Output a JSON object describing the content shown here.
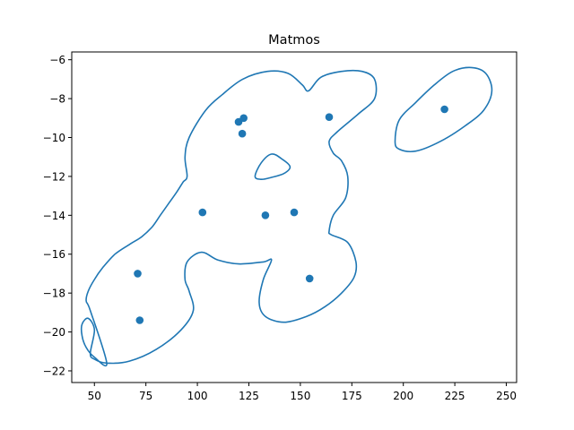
{
  "chart_data": {
    "type": "scatter",
    "title": "Matmos",
    "xlabel": "",
    "ylabel": "",
    "xlim": [
      39,
      255
    ],
    "ylim": [
      -22.6,
      -5.6
    ],
    "xticks": [
      50,
      75,
      100,
      125,
      150,
      175,
      200,
      225,
      250
    ],
    "yticks": [
      -22,
      -20,
      -18,
      -16,
      -14,
      -12,
      -10,
      -8,
      -6
    ],
    "grid": false,
    "series": [
      {
        "kind": "points",
        "color": "#1f77b4",
        "x": [
          71,
          72,
          102.5,
          120,
          122.5,
          121.8,
          133,
          147,
          154.5,
          164,
          220
        ],
        "y": [
          -17.0,
          -19.4,
          -13.85,
          -9.2,
          -9.0,
          -9.8,
          -14.0,
          -13.85,
          -17.25,
          -8.95,
          -8.55
        ]
      },
      {
        "kind": "contour",
        "color": "#1f77b4",
        "paths": [
          {
            "x": [
              56,
              50,
              46,
              44,
              44,
              47,
              50,
              48,
              50,
              56,
              67,
              80,
              92,
              98,
              96,
              94,
              95,
              102,
              110,
              120,
              132,
              136,
              132,
              130,
              133,
              142,
              153,
              162,
              170,
              176,
              177,
              173,
              165,
              164,
              166,
              172,
              173,
              170,
              166,
              164,
              168,
              178,
              186,
              186,
              180,
              170,
              160,
              154,
              151,
              144,
              134,
              122,
              112,
              104,
              96,
              94,
              95,
              93,
              90,
              86,
              82,
              78,
              73,
              67,
              60,
              54,
              50,
              47,
              46,
              48,
              56
            ],
            "y": [
              -21.6,
              -21.3,
              -20.8,
              -20.2,
              -19.6,
              -19.3,
              -19.9,
              -21.1,
              -21.4,
              -21.6,
              -21.5,
              -20.9,
              -19.9,
              -18.9,
              -17.9,
              -17.3,
              -16.4,
              -15.9,
              -16.3,
              -16.5,
              -16.4,
              -16.3,
              -17.3,
              -18.5,
              -19.2,
              -19.5,
              -19.2,
              -18.7,
              -18.0,
              -17.2,
              -16.4,
              -15.4,
              -15.0,
              -14.8,
              -14.0,
              -13.1,
              -12.0,
              -11.2,
              -10.8,
              -10.2,
              -9.7,
              -8.8,
              -8.0,
              -7.0,
              -6.6,
              -6.6,
              -6.9,
              -7.6,
              -7.3,
              -6.7,
              -6.6,
              -7.0,
              -7.8,
              -8.6,
              -10.0,
              -11.0,
              -12.0,
              -12.3,
              -12.8,
              -13.4,
              -14.0,
              -14.6,
              -15.1,
              -15.5,
              -16.0,
              -16.7,
              -17.3,
              -17.9,
              -18.4,
              -18.9,
              -21.6
            ]
          },
          {
            "x": [
              128,
              131,
              136,
              141,
              145,
              142,
              136,
              131,
              128
            ],
            "y": [
              -12.0,
              -11.3,
              -10.85,
              -11.1,
              -11.5,
              -11.85,
              -12.05,
              -12.15,
              -12.0
            ]
          },
          {
            "x": [
              206,
              218,
              230,
              239,
              243,
              240,
              233,
              224,
              215,
              206,
              198,
              196,
              198,
              206
            ],
            "y": [
              -10.7,
              -10.2,
              -9.4,
              -8.6,
              -7.6,
              -6.7,
              -6.4,
              -6.6,
              -7.3,
              -8.2,
              -9.1,
              -10.2,
              -10.6,
              -10.7
            ]
          }
        ]
      }
    ]
  }
}
